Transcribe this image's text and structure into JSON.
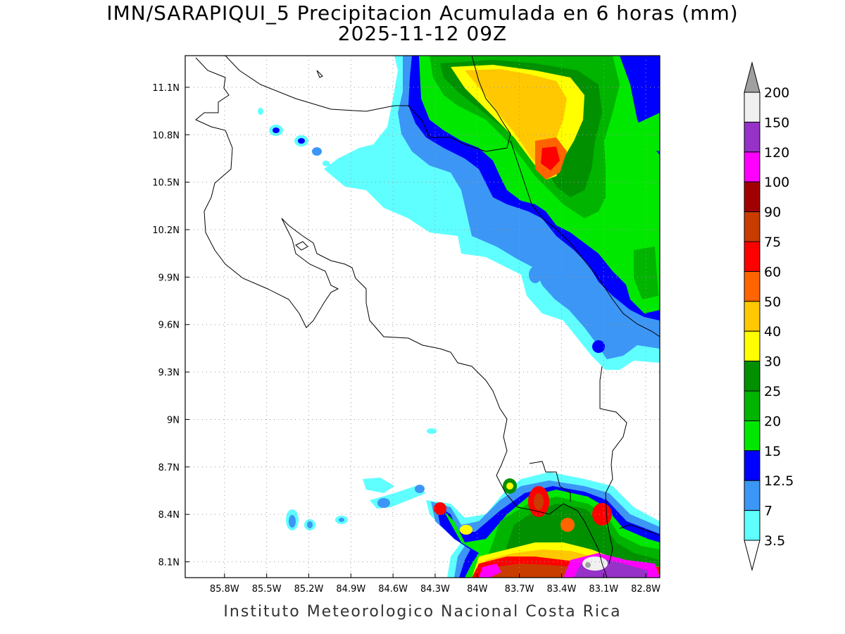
{
  "title": {
    "line1": "IMN/SARAPIQUI_5 Precipitacion Acumulada en 6 horas (mm)",
    "line2": "2025-11-12 09Z"
  },
  "footer": "Instituto Meteorologico Nacional Costa Rica",
  "map": {
    "lon_range": [
      -86.08,
      -82.7
    ],
    "lat_range": [
      8.0,
      11.3
    ],
    "lon_ticks": [
      "85.8W",
      "85.5W",
      "85.2W",
      "84.9W",
      "84.6W",
      "84.3W",
      "84W",
      "83.7W",
      "83.4W",
      "83.1W",
      "82.8W"
    ],
    "lon_tick_values": [
      -85.8,
      -85.5,
      -85.2,
      -84.9,
      -84.6,
      -84.3,
      -84.0,
      -83.7,
      -83.4,
      -83.1,
      -82.8
    ],
    "lat_ticks": [
      "11.1N",
      "10.8N",
      "10.5N",
      "10.2N",
      "9.9N",
      "9.6N",
      "9.3N",
      "9N",
      "8.7N",
      "8.4N",
      "8.1N"
    ],
    "lat_tick_values": [
      11.1,
      10.8,
      10.5,
      10.2,
      9.9,
      9.6,
      9.3,
      9.0,
      8.7,
      8.4,
      8.1
    ],
    "grid": "dotted"
  },
  "colorbar": {
    "labels": [
      "3.5",
      "7",
      "12.5",
      "15",
      "20",
      "25",
      "30",
      "40",
      "50",
      "60",
      "75",
      "90",
      "100",
      "120",
      "150",
      "200"
    ],
    "colors": [
      "#ffffff",
      "#60ffff",
      "#3c96f5",
      "#0000ff",
      "#00e800",
      "#00b400",
      "#009000",
      "#ffff00",
      "#ffc800",
      "#ff6400",
      "#ff0000",
      "#c83c00",
      "#a00000",
      "#ff00ff",
      "#9632c8",
      "#f0f0f0",
      "#a0a0a0"
    ],
    "unit": "mm"
  }
}
